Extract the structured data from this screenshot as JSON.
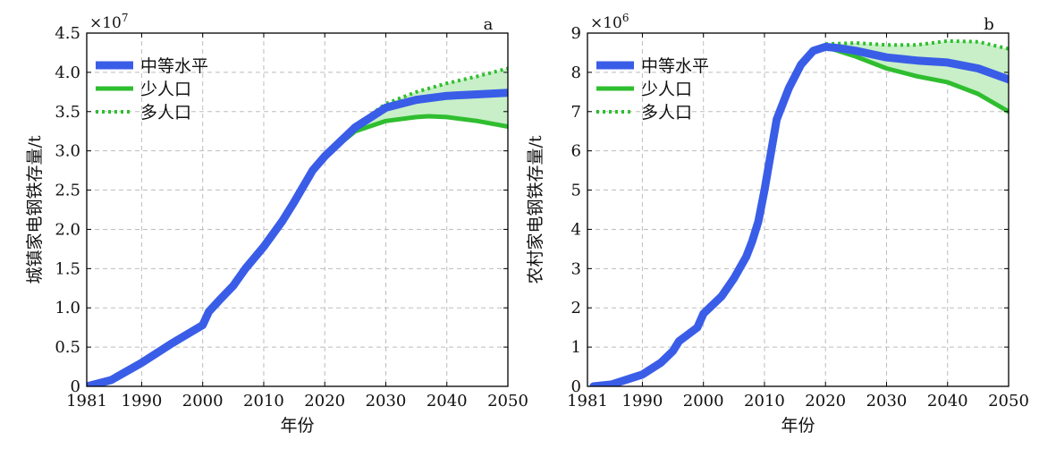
{
  "chart_data": [
    {
      "type": "line",
      "panel_label": "a",
      "multiplier_base": "×10",
      "multiplier_exp": "7",
      "xlabel": "年份",
      "ylabel": "城镇家电钢铁存量/t",
      "xlim": [
        1981,
        2050
      ],
      "ylim": [
        0,
        4.5
      ],
      "x_ticks": [
        1981,
        1990,
        2000,
        2010,
        2020,
        2030,
        2040,
        2050
      ],
      "y_ticks": [
        0,
        0.5,
        1.0,
        1.5,
        2.0,
        2.5,
        3.0,
        3.5,
        4.0,
        4.5
      ],
      "y_tick_labels": [
        "0",
        "0.5",
        "1.0",
        "1.5",
        "2.0",
        "2.5",
        "3.0",
        "3.5",
        "4.0",
        "4.5"
      ],
      "grid": true,
      "legend_position": "top-left",
      "shaded_band": {
        "from_series": "少人口",
        "to_series": "多人口",
        "color": "#c8efc8"
      },
      "series": [
        {
          "name": "中等水平",
          "color": "#3a5de8",
          "style": "thick-solid",
          "x": [
            1981,
            1985,
            1990,
            1995,
            2000,
            2001,
            2003,
            2005,
            2007,
            2010,
            2013,
            2015,
            2018,
            2020,
            2025,
            2030,
            2035,
            2040,
            2045,
            2050
          ],
          "y": [
            0,
            0.08,
            0.3,
            0.55,
            0.78,
            0.95,
            1.12,
            1.28,
            1.5,
            1.78,
            2.1,
            2.35,
            2.75,
            2.93,
            3.3,
            3.55,
            3.65,
            3.7,
            3.72,
            3.74
          ]
        },
        {
          "name": "少人口",
          "color": "#2fbe2f",
          "style": "solid",
          "x": [
            2020,
            2025,
            2030,
            2035,
            2037,
            2040,
            2045,
            2050
          ],
          "y": [
            2.93,
            3.25,
            3.38,
            3.43,
            3.44,
            3.43,
            3.38,
            3.31
          ]
        },
        {
          "name": "多人口",
          "color": "#2fbe2f",
          "style": "dotted",
          "x": [
            2020,
            2025,
            2030,
            2035,
            2040,
            2045,
            2050
          ],
          "y": [
            2.93,
            3.32,
            3.6,
            3.75,
            3.86,
            3.95,
            4.05
          ]
        }
      ]
    },
    {
      "type": "line",
      "panel_label": "b",
      "multiplier_base": "×10",
      "multiplier_exp": "6",
      "xlabel": "年份",
      "ylabel": "农村家电钢铁存量/t",
      "xlim": [
        1981,
        2050
      ],
      "ylim": [
        0,
        9
      ],
      "x_ticks": [
        1981,
        1990,
        2000,
        2010,
        2020,
        2030,
        2040,
        2050
      ],
      "y_ticks": [
        0,
        1,
        2,
        3,
        4,
        5,
        6,
        7,
        8,
        9
      ],
      "y_tick_labels": [
        "0",
        "1",
        "2",
        "3",
        "4",
        "5",
        "6",
        "7",
        "8",
        "9"
      ],
      "grid": true,
      "legend_position": "top-left",
      "shaded_band": {
        "from_series": "少人口",
        "to_series": "多人口",
        "color": "#c8efc8"
      },
      "series": [
        {
          "name": "中等水平",
          "color": "#3a5de8",
          "style": "thick-solid",
          "x": [
            1982,
            1985,
            1990,
            1993,
            1995,
            1996,
            1999,
            2000,
            2003,
            2005,
            2007,
            2008,
            2009,
            2010,
            2011,
            2012,
            2014,
            2016,
            2018,
            2020,
            2022,
            2025,
            2030,
            2035,
            2040,
            2045,
            2050
          ],
          "y": [
            0,
            0.05,
            0.3,
            0.6,
            0.9,
            1.15,
            1.5,
            1.85,
            2.3,
            2.75,
            3.3,
            3.7,
            4.2,
            5.0,
            5.9,
            6.8,
            7.6,
            8.2,
            8.55,
            8.65,
            8.62,
            8.55,
            8.38,
            8.3,
            8.25,
            8.1,
            7.82
          ]
        },
        {
          "name": "少人口",
          "color": "#2fbe2f",
          "style": "solid",
          "x": [
            2020,
            2025,
            2030,
            2035,
            2040,
            2045,
            2050
          ],
          "y": [
            8.65,
            8.4,
            8.1,
            7.9,
            7.75,
            7.45,
            7.0
          ]
        },
        {
          "name": "多人口",
          "color": "#2fbe2f",
          "style": "dotted",
          "x": [
            2020,
            2025,
            2030,
            2035,
            2040,
            2045,
            2050
          ],
          "y": [
            8.72,
            8.75,
            8.7,
            8.7,
            8.8,
            8.78,
            8.6
          ]
        }
      ]
    }
  ]
}
